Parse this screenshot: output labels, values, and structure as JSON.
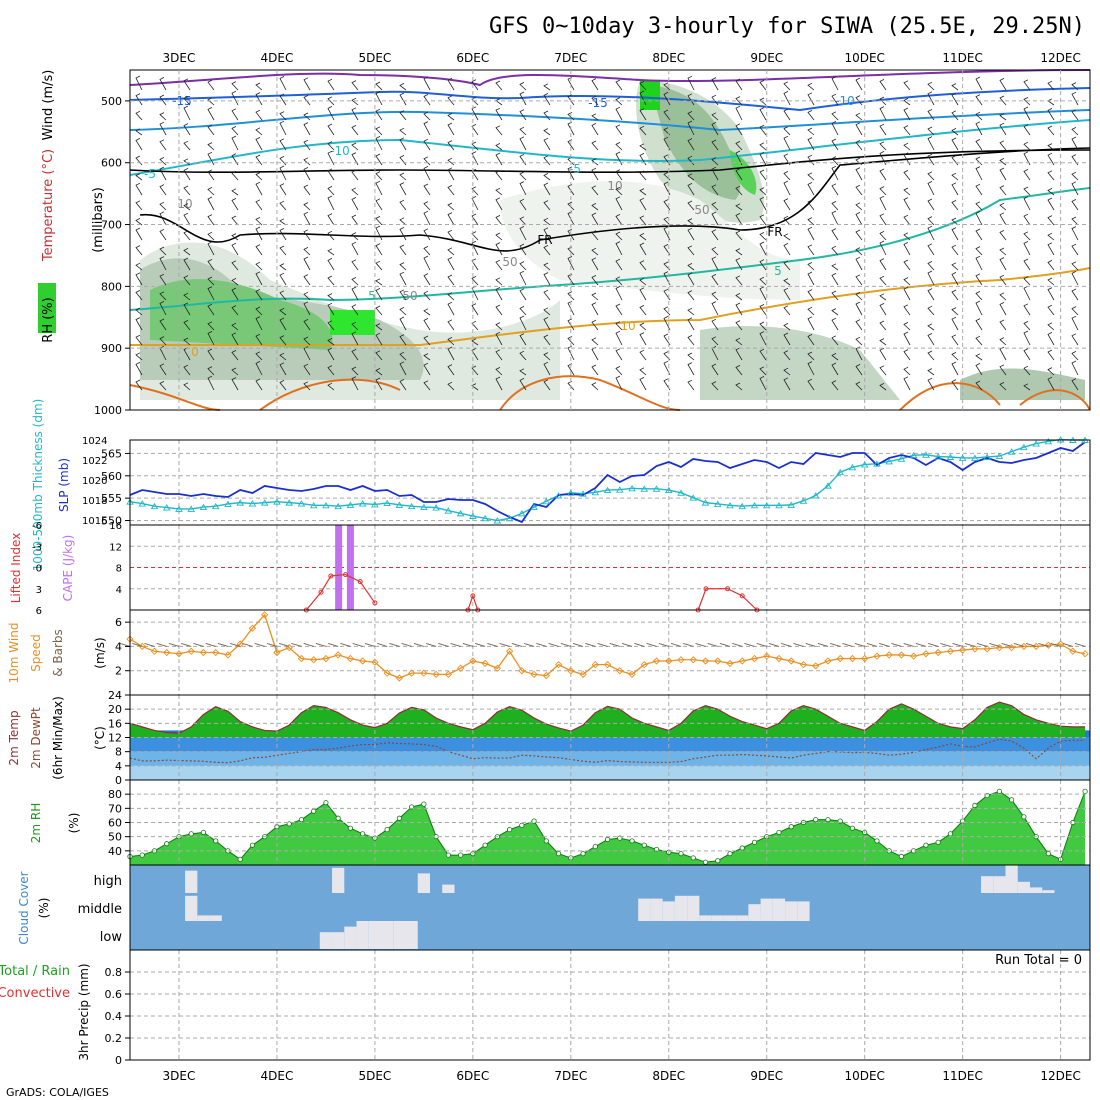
{
  "title": "GFS 0~10day 3-hourly for SIWA (25.5E, 29.25N)",
  "credit": "GrADS: COLA/IGES",
  "x_axis": {
    "day_labels": [
      "3DEC",
      "4DEC",
      "5DEC",
      "6DEC",
      "7DEC",
      "8DEC",
      "9DEC",
      "10DEC",
      "11DEC",
      "12DEC"
    ],
    "time_range_days": [
      2.5,
      12.3
    ]
  },
  "panel_labels": {
    "upper": {
      "rh": "RH (%)",
      "temp": "Temperature (°C)",
      "wind": "Wind (m/s)",
      "mb": "(millibars)",
      "ticks": [
        "500",
        "600",
        "700",
        "800",
        "900",
        "1000"
      ],
      "contour_labels": [
        "-15",
        "-15",
        "-10",
        "-10",
        "-5",
        "-5",
        "5",
        "5",
        "10",
        "0",
        "FR",
        "FR",
        "10",
        "10",
        "50",
        "50",
        "50"
      ]
    },
    "thick": {
      "left": "1000-500mb Thickness (dm)",
      "right": "SLP (mb)",
      "left_ticks": [
        "565",
        "560",
        "555",
        "550"
      ],
      "right_ticks": [
        "1024",
        "1022",
        "1020",
        "1018",
        "1016"
      ]
    },
    "cape": {
      "left": "Lifted Index",
      "right": "CAPE (J/kg)",
      "li_ticks": [
        "-6",
        "-3",
        "0",
        "3",
        "6"
      ],
      "cape_ticks": [
        "16",
        "12",
        "8",
        "4"
      ]
    },
    "wind10": {
      "line1": "10m Wind",
      "line2": "Speed",
      "line3": "& Barbs",
      "unit": "(m/s)",
      "ticks": [
        "6",
        "4",
        "2"
      ]
    },
    "temp2m": {
      "line1": "2m Temp",
      "line2": "2m DewPt",
      "line3": "(6hr Min/Max)",
      "unit": "(°C)",
      "ticks": [
        "24",
        "20",
        "16",
        "12",
        "8",
        "4",
        "0"
      ]
    },
    "rh2m": {
      "label": "2m RH",
      "unit": "(%)",
      "ticks": [
        "80",
        "70",
        "60",
        "50",
        "40"
      ]
    },
    "cloud": {
      "label": "Cloud Cover",
      "unit": "(%)",
      "levels": [
        "high",
        "middle",
        "low"
      ]
    },
    "precip": {
      "label": "3hr Precip (mm)",
      "total_rain": "Total / Rain",
      "convective": "Convective",
      "run_total": "Run Total = 0",
      "ticks": [
        "0.8",
        "0.6",
        "0.4",
        "0.2",
        "0"
      ]
    }
  },
  "colors": {
    "slp_line": "#1a2fd0",
    "thickness_line": "#20b8c8",
    "cape_bar": "#c070f0",
    "li_line": "#e03030",
    "wind_speed": "#e89020",
    "temp_fill": "#1fb020",
    "rh_fill": "#20c020",
    "cloud_bg": "#6fa8d8"
  },
  "chart_data": {
    "type": "meteogram",
    "x_unit": "day of December",
    "time_days": [
      2.5,
      2.625,
      2.75,
      2.875,
      3.0,
      3.125,
      3.25,
      3.375,
      3.5,
      3.625,
      3.75,
      3.875,
      4.0,
      4.125,
      4.25,
      4.375,
      4.5,
      4.625,
      4.75,
      4.875,
      5.0,
      5.125,
      5.25,
      5.375,
      5.5,
      5.625,
      5.75,
      5.875,
      6.0,
      6.125,
      6.25,
      6.375,
      6.5,
      6.625,
      6.75,
      6.875,
      7.0,
      7.125,
      7.25,
      7.375,
      7.5,
      7.625,
      7.75,
      7.875,
      8.0,
      8.125,
      8.25,
      8.375,
      8.5,
      8.625,
      8.75,
      8.875,
      9.0,
      9.125,
      9.25,
      9.375,
      9.5,
      9.625,
      9.75,
      9.875,
      10.0,
      10.125,
      10.25,
      10.375,
      10.5,
      10.625,
      10.75,
      10.875,
      11.0,
      11.125,
      11.25,
      11.375,
      11.5,
      11.625,
      11.75,
      11.875,
      12.0,
      12.125,
      12.25
    ],
    "slp_mb": [
      1018.5,
      1019.0,
      1018.8,
      1018.6,
      1018.6,
      1018.4,
      1018.6,
      1018.4,
      1018.3,
      1019.0,
      1018.7,
      1019.4,
      1019.2,
      1019.0,
      1018.9,
      1019.1,
      1019.4,
      1019.4,
      1019.0,
      1019.4,
      1018.9,
      1019.0,
      1018.4,
      1018.5,
      1017.8,
      1017.8,
      1018.1,
      1018.0,
      1018.0,
      1017.6,
      1016.9,
      1016.3,
      1015.8,
      1017.6,
      1017.3,
      1018.5,
      1018.6,
      1018.5,
      1019.2,
      1020.5,
      1019.8,
      1020.4,
      1020.5,
      1021.4,
      1021.8,
      1021.3,
      1022.1,
      1021.9,
      1021.8,
      1021.2,
      1021.6,
      1022.0,
      1021.8,
      1021.2,
      1021.8,
      1021.6,
      1022.7,
      1022.5,
      1022.3,
      1022.7,
      1022.7,
      1021.5,
      1022.2,
      1022.5,
      1022.2,
      1021.5,
      1022.2,
      1021.8,
      1021.0,
      1021.8,
      1022.2,
      1021.8,
      1021.7,
      1022.0,
      1022.2,
      1022.7,
      1023.2,
      1022.9,
      1023.8
    ],
    "thickness_dm": [
      554.2,
      553.8,
      553.2,
      552.9,
      552.6,
      552.6,
      553.0,
      553.2,
      553.7,
      554.0,
      553.8,
      554.0,
      554.2,
      554.0,
      553.8,
      553.4,
      553.4,
      553.2,
      553.5,
      553.8,
      553.6,
      553.9,
      553.5,
      553.2,
      553.0,
      552.9,
      552.2,
      551.6,
      551.0,
      550.5,
      550.0,
      550.5,
      551.6,
      553.0,
      554.3,
      555.6,
      556.2,
      556.0,
      556.3,
      556.8,
      556.9,
      557.2,
      557.1,
      557.1,
      556.8,
      556.2,
      555.1,
      554.0,
      553.7,
      553.4,
      553.2,
      553.4,
      553.4,
      553.4,
      553.5,
      554.4,
      555.6,
      557.8,
      560.8,
      561.9,
      562.5,
      562.7,
      563.2,
      563.8,
      564.6,
      564.7,
      564.3,
      564.2,
      564.0,
      564.0,
      564.2,
      564.4,
      565.4,
      566.4,
      567.2,
      567.7,
      568.1,
      568.0,
      568.0
    ],
    "cape_bars": [
      {
        "day": 4.63,
        "cape": 16
      },
      {
        "day": 4.75,
        "cape": 16
      }
    ],
    "lifted_index_segments": [
      [
        [
          4.3,
          6.0
        ],
        [
          4.45,
          3.5
        ],
        [
          4.55,
          1.2
        ],
        [
          4.7,
          1.0
        ],
        [
          4.85,
          2.0
        ],
        [
          5.0,
          5.0
        ]
      ],
      [
        [
          5.95,
          6.0
        ],
        [
          6.0,
          4.0
        ],
        [
          6.05,
          6.0
        ]
      ],
      [
        [
          8.3,
          6.0
        ],
        [
          8.38,
          3.0
        ],
        [
          8.6,
          3.0
        ],
        [
          8.75,
          4.0
        ],
        [
          8.9,
          6.0
        ]
      ]
    ],
    "wind10_speed_ms": [
      4.6,
      4.0,
      3.6,
      3.5,
      3.4,
      3.6,
      3.5,
      3.5,
      3.3,
      4.2,
      5.5,
      6.6,
      3.5,
      3.9,
      3.0,
      2.9,
      3.0,
      3.3,
      3.0,
      2.8,
      2.7,
      1.8,
      1.4,
      1.8,
      1.8,
      1.7,
      1.7,
      2.2,
      2.8,
      2.6,
      2.2,
      3.6,
      2.0,
      1.7,
      1.6,
      2.5,
      2.0,
      1.7,
      2.5,
      2.5,
      2.0,
      1.7,
      2.5,
      2.8,
      2.8,
      2.9,
      2.9,
      2.8,
      2.8,
      2.6,
      2.8,
      3.0,
      3.2,
      3.0,
      2.8,
      2.5,
      2.4,
      2.8,
      3.0,
      3.0,
      3.0,
      3.2,
      3.3,
      3.3,
      3.2,
      3.4,
      3.5,
      3.6,
      3.7,
      3.8,
      3.8,
      3.9,
      3.9,
      4.0,
      4.0,
      4.1,
      4.2,
      3.6,
      3.4
    ],
    "temp2m_c": [
      16.0,
      15.0,
      14.0,
      13.4,
      13.2,
      15.0,
      18.5,
      20.7,
      19.4,
      16.5,
      15.0,
      14.0,
      13.8,
      15.5,
      19.0,
      21.0,
      20.5,
      19.0,
      17.0,
      15.5,
      14.8,
      16.0,
      18.9,
      20.5,
      19.8,
      17.5,
      16.0,
      15.0,
      14.2,
      16.0,
      19.2,
      20.7,
      19.7,
      17.5,
      15.8,
      14.7,
      13.8,
      15.5,
      19.0,
      20.8,
      20.0,
      17.5,
      16.0,
      15.0,
      14.0,
      16.0,
      19.5,
      21.0,
      20.0,
      18.0,
      16.5,
      15.5,
      14.5,
      16.0,
      19.5,
      21.0,
      20.0,
      18.0,
      16.0,
      15.0,
      14.0,
      16.5,
      20.0,
      21.5,
      20.0,
      18.0,
      16.0,
      15.0,
      14.5,
      17.0,
      20.5,
      22.0,
      21.0,
      18.5,
      17.0,
      16.0,
      15.2,
      15.0,
      15.0
    ],
    "dewpt2m_c": [
      6.2,
      5.4,
      5.4,
      5.6,
      5.5,
      5.4,
      5.3,
      5.0,
      4.9,
      5.4,
      6.3,
      6.4,
      7.0,
      7.5,
      8.0,
      8.6,
      8.6,
      9.0,
      9.6,
      10.0,
      10.0,
      10.5,
      10.3,
      10.2,
      10.0,
      9.5,
      8.0,
      7.0,
      6.0,
      6.3,
      6.2,
      6.2,
      7.0,
      6.8,
      6.5,
      6.3,
      5.8,
      5.3,
      5.0,
      5.5,
      5.2,
      5.1,
      5.0,
      5.0,
      5.0,
      5.2,
      6.0,
      6.5,
      7.0,
      7.0,
      7.2,
      7.0,
      6.8,
      6.5,
      6.2,
      7.0,
      7.5,
      8.0,
      7.9,
      7.7,
      7.8,
      7.5,
      7.0,
      7.3,
      7.8,
      8.6,
      9.3,
      10.2,
      9.5,
      9.3,
      10.5,
      11.5,
      11.0,
      9.0,
      6.0,
      9.0,
      11.0,
      11.2,
      11.2
    ],
    "rh2m_pct": [
      36.0,
      37.0,
      40.0,
      45.0,
      50.0,
      52.0,
      53.0,
      47.0,
      40.0,
      34.0,
      44.0,
      50.0,
      57.0,
      59.0,
      62.0,
      68.0,
      74.0,
      63.0,
      56.0,
      52.0,
      49.0,
      55.0,
      63.0,
      71.0,
      73.0,
      50.0,
      37.0,
      37.0,
      38.0,
      44.0,
      50.0,
      55.0,
      58.0,
      61.0,
      47.0,
      38.0,
      35.0,
      38.0,
      43.0,
      48.0,
      49.0,
      47.0,
      44.0,
      41.0,
      39.0,
      38.0,
      35.0,
      32.0,
      33.0,
      38.0,
      42.0,
      46.0,
      50.0,
      53.0,
      57.0,
      60.0,
      62.0,
      62.0,
      61.0,
      56.0,
      53.0,
      47.0,
      40.0,
      36.0,
      40.0,
      44.0,
      46.0,
      52.0,
      61.0,
      72.0,
      79.0,
      82.0,
      76.0,
      64.0,
      50.0,
      38.0,
      34.0,
      60.0,
      82.0
    ],
    "cloud_high_pct": [
      0,
      0,
      0,
      0,
      0,
      80,
      0,
      0,
      0,
      0,
      0,
      0,
      0,
      0,
      0,
      0,
      0,
      90,
      0,
      0,
      0,
      0,
      0,
      0,
      70,
      0,
      30,
      0,
      0,
      0,
      0,
      0,
      0,
      0,
      0,
      0,
      0,
      0,
      0,
      0,
      0,
      0,
      0,
      0,
      0,
      0,
      0,
      0,
      0,
      0,
      0,
      0,
      0,
      0,
      0,
      0,
      0,
      0,
      0,
      0,
      0,
      0,
      0,
      0,
      0,
      0,
      0,
      0,
      0,
      0,
      60,
      60,
      100,
      40,
      20,
      10,
      0,
      0,
      0
    ],
    "cloud_mid_pct": [
      0,
      0,
      0,
      0,
      0,
      90,
      20,
      20,
      0,
      0,
      0,
      0,
      0,
      0,
      0,
      0,
      0,
      0,
      0,
      0,
      0,
      0,
      0,
      0,
      0,
      0,
      0,
      0,
      0,
      0,
      0,
      0,
      0,
      0,
      0,
      0,
      0,
      0,
      0,
      0,
      0,
      0,
      80,
      80,
      70,
      90,
      90,
      20,
      20,
      20,
      20,
      60,
      80,
      80,
      70,
      70,
      0,
      0,
      0,
      0,
      0,
      0,
      0,
      0,
      0,
      0,
      0,
      0,
      0,
      0,
      0,
      0,
      0,
      0,
      0,
      0,
      0,
      0,
      0
    ],
    "cloud_low_pct": [
      0,
      0,
      0,
      0,
      0,
      0,
      0,
      0,
      0,
      0,
      0,
      0,
      0,
      0,
      0,
      0,
      60,
      60,
      80,
      100,
      100,
      100,
      100,
      100,
      0,
      0,
      0,
      0,
      0,
      0,
      0,
      0,
      0,
      0,
      0,
      0,
      0,
      0,
      0,
      0,
      0,
      0,
      0,
      0,
      0,
      0,
      0,
      0,
      0,
      0,
      0,
      0,
      0,
      0,
      0,
      0,
      0,
      0,
      0,
      0,
      0,
      0,
      0,
      0,
      0,
      0,
      0,
      0,
      0,
      0,
      0,
      0,
      0,
      0,
      0,
      0,
      0,
      0,
      0
    ],
    "precip_mm": [
      0,
      0,
      0,
      0,
      0,
      0,
      0,
      0,
      0,
      0,
      0,
      0,
      0,
      0,
      0,
      0,
      0,
      0,
      0,
      0,
      0,
      0,
      0,
      0,
      0,
      0,
      0,
      0,
      0,
      0,
      0,
      0,
      0,
      0,
      0,
      0,
      0,
      0,
      0,
      0,
      0,
      0,
      0,
      0,
      0,
      0,
      0,
      0,
      0,
      0,
      0,
      0,
      0,
      0,
      0,
      0,
      0,
      0,
      0,
      0,
      0,
      0,
      0,
      0,
      0,
      0,
      0,
      0,
      0,
      0,
      0,
      0,
      0,
      0,
      0,
      0,
      0,
      0,
      0
    ],
    "ranges": {
      "pressure_mb": [
        450,
        1000
      ],
      "thickness_dm": [
        549,
        568
      ],
      "slp_mb": [
        1015.5,
        1024
      ],
      "lifted_index": [
        -6,
        6
      ],
      "cape_jkg": [
        0,
        16
      ],
      "wind10_ms": [
        0,
        7
      ],
      "temp2m_c": [
        0,
        24
      ],
      "rh2m_pct": [
        30,
        90
      ],
      "precip_mm": [
        0,
        1
      ]
    },
    "grid": true
  }
}
